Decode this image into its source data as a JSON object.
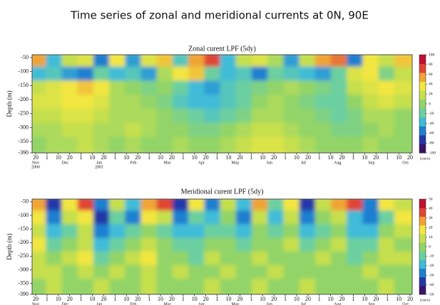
{
  "title": "Time series of zonal and meridional currents at 0N, 90E",
  "chart_data": [
    {
      "type": "heatmap",
      "title": "Zonal curent LPF (5dy)",
      "ylabel": "Depth (m)",
      "ylim": [
        -390,
        -40
      ],
      "yticks": [
        -50,
        -100,
        -150,
        -200,
        -250,
        -300,
        -350,
        -390
      ],
      "x_day_labels": [
        20,
        1,
        10,
        20,
        1,
        10,
        20,
        1,
        10,
        20,
        1,
        10,
        20,
        1,
        10,
        20,
        1,
        10,
        20,
        1,
        10,
        20,
        1,
        10,
        20,
        1,
        10,
        20,
        1,
        10,
        20,
        1,
        10,
        20
      ],
      "months": [
        "Nov",
        "Dec",
        "Jan",
        "Feb",
        "Mar",
        "Apr",
        "May",
        "Jun",
        "Jul",
        "Aug",
        "Sep",
        "Oct"
      ],
      "years": [
        "2000",
        "2001"
      ],
      "zlim": [
        -100,
        100
      ],
      "zticks": [
        100,
        80,
        60,
        40,
        20,
        0,
        -20,
        -40,
        -60,
        -80,
        -100
      ],
      "zunit": "(cm/s)",
      "colorscale": [
        "#3a1468",
        "#2438a8",
        "#1e7fd0",
        "#3fbcd8",
        "#6ccfa0",
        "#92d468",
        "#c6df4e",
        "#f2e640",
        "#f0a434",
        "#e04434",
        "#c01030"
      ],
      "z": [
        [
          60,
          -40,
          20,
          30,
          -60,
          40,
          -50,
          30,
          50,
          -30,
          60,
          80,
          -40,
          20,
          30,
          10,
          -50,
          20,
          60,
          70,
          -60,
          40,
          20,
          50
        ],
        [
          -40,
          -30,
          -50,
          -60,
          -20,
          -40,
          -30,
          -50,
          10,
          40,
          50,
          -20,
          -40,
          -30,
          -60,
          -20,
          -30,
          -40,
          -50,
          -20,
          30,
          40,
          -10,
          20
        ],
        [
          20,
          30,
          40,
          50,
          40,
          10,
          0,
          -10,
          0,
          -20,
          -40,
          -50,
          -30,
          -20,
          -10,
          0,
          10,
          0,
          -10,
          -20,
          20,
          30,
          40,
          30
        ],
        [
          30,
          30,
          40,
          40,
          30,
          10,
          10,
          0,
          -10,
          -30,
          -40,
          -40,
          -30,
          -20,
          0,
          10,
          0,
          -10,
          -20,
          -20,
          0,
          20,
          30,
          20
        ],
        [
          20,
          20,
          30,
          30,
          20,
          10,
          10,
          10,
          0,
          -10,
          -20,
          -30,
          -20,
          -10,
          10,
          10,
          0,
          0,
          -10,
          -20,
          -10,
          10,
          10,
          0
        ],
        [
          10,
          10,
          20,
          20,
          10,
          10,
          20,
          10,
          0,
          0,
          -10,
          -10,
          0,
          10,
          20,
          20,
          10,
          0,
          0,
          -10,
          -10,
          0,
          10,
          0
        ],
        [
          0,
          10,
          10,
          20,
          10,
          0,
          10,
          0,
          0,
          10,
          0,
          0,
          10,
          20,
          30,
          30,
          20,
          10,
          0,
          0,
          0,
          10,
          0,
          0
        ]
      ]
    },
    {
      "type": "heatmap",
      "title": "Meridional curent LPF (5dy)",
      "ylabel": "Depth (m)",
      "ylim": [
        -390,
        -40
      ],
      "yticks": [
        -50,
        -100,
        -150,
        -200,
        -250,
        -300,
        -350,
        -390
      ],
      "x_day_labels": [
        20,
        1,
        10,
        20,
        1,
        10,
        20,
        1,
        10,
        20,
        1,
        10,
        20,
        1,
        10,
        20,
        1,
        10,
        20,
        1,
        10,
        20,
        1,
        10,
        20,
        1,
        10,
        20,
        1,
        10,
        20,
        1,
        10,
        20
      ],
      "months": [
        "Nov",
        "Dec",
        "Jan",
        "Feb",
        "Mar",
        "Apr",
        "May",
        "Jun",
        "Jul",
        "Aug",
        "Sep",
        "Oct"
      ],
      "zlim": [
        -50,
        50
      ],
      "zticks": [
        50,
        40,
        30,
        20,
        10,
        0,
        -10,
        -20,
        -30,
        -40,
        -50
      ],
      "zunit": "(cm/s)",
      "colorscale": [
        "#3a1468",
        "#2438a8",
        "#1e7fd0",
        "#3fbcd8",
        "#6ccfa0",
        "#92d468",
        "#c6df4e",
        "#f2e640",
        "#f0a434",
        "#e04434",
        "#c01030"
      ],
      "z": [
        [
          30,
          -40,
          20,
          40,
          -30,
          10,
          -20,
          30,
          40,
          -40,
          20,
          -30,
          10,
          -20,
          30,
          -10,
          20,
          -40,
          10,
          30,
          40,
          -30,
          20,
          10
        ],
        [
          20,
          -30,
          10,
          20,
          -40,
          -10,
          -30,
          20,
          10,
          -30,
          -10,
          -20,
          0,
          -30,
          10,
          -20,
          10,
          -30,
          0,
          10,
          -20,
          -30,
          -10,
          20
        ],
        [
          10,
          -20,
          -10,
          10,
          -30,
          -20,
          -10,
          0,
          -10,
          -20,
          -20,
          -10,
          -10,
          -20,
          0,
          -10,
          0,
          -20,
          -10,
          0,
          -20,
          -20,
          0,
          10
        ],
        [
          20,
          -10,
          0,
          10,
          -20,
          -10,
          0,
          10,
          0,
          -10,
          -10,
          0,
          0,
          -10,
          0,
          0,
          10,
          -10,
          0,
          10,
          -10,
          -10,
          10,
          0
        ],
        [
          10,
          0,
          10,
          20,
          -10,
          0,
          10,
          20,
          0,
          0,
          -10,
          10,
          0,
          0,
          10,
          0,
          0,
          0,
          10,
          0,
          -10,
          0,
          10,
          10
        ],
        [
          10,
          10,
          0,
          10,
          0,
          10,
          0,
          10,
          0,
          10,
          0,
          0,
          10,
          0,
          0,
          10,
          0,
          0,
          0,
          0,
          0,
          10,
          0,
          0
        ],
        [
          0,
          10,
          0,
          0,
          10,
          0,
          0,
          10,
          0,
          0,
          0,
          10,
          0,
          0,
          10,
          0,
          0,
          10,
          0,
          0,
          0,
          0,
          10,
          0
        ]
      ]
    }
  ]
}
